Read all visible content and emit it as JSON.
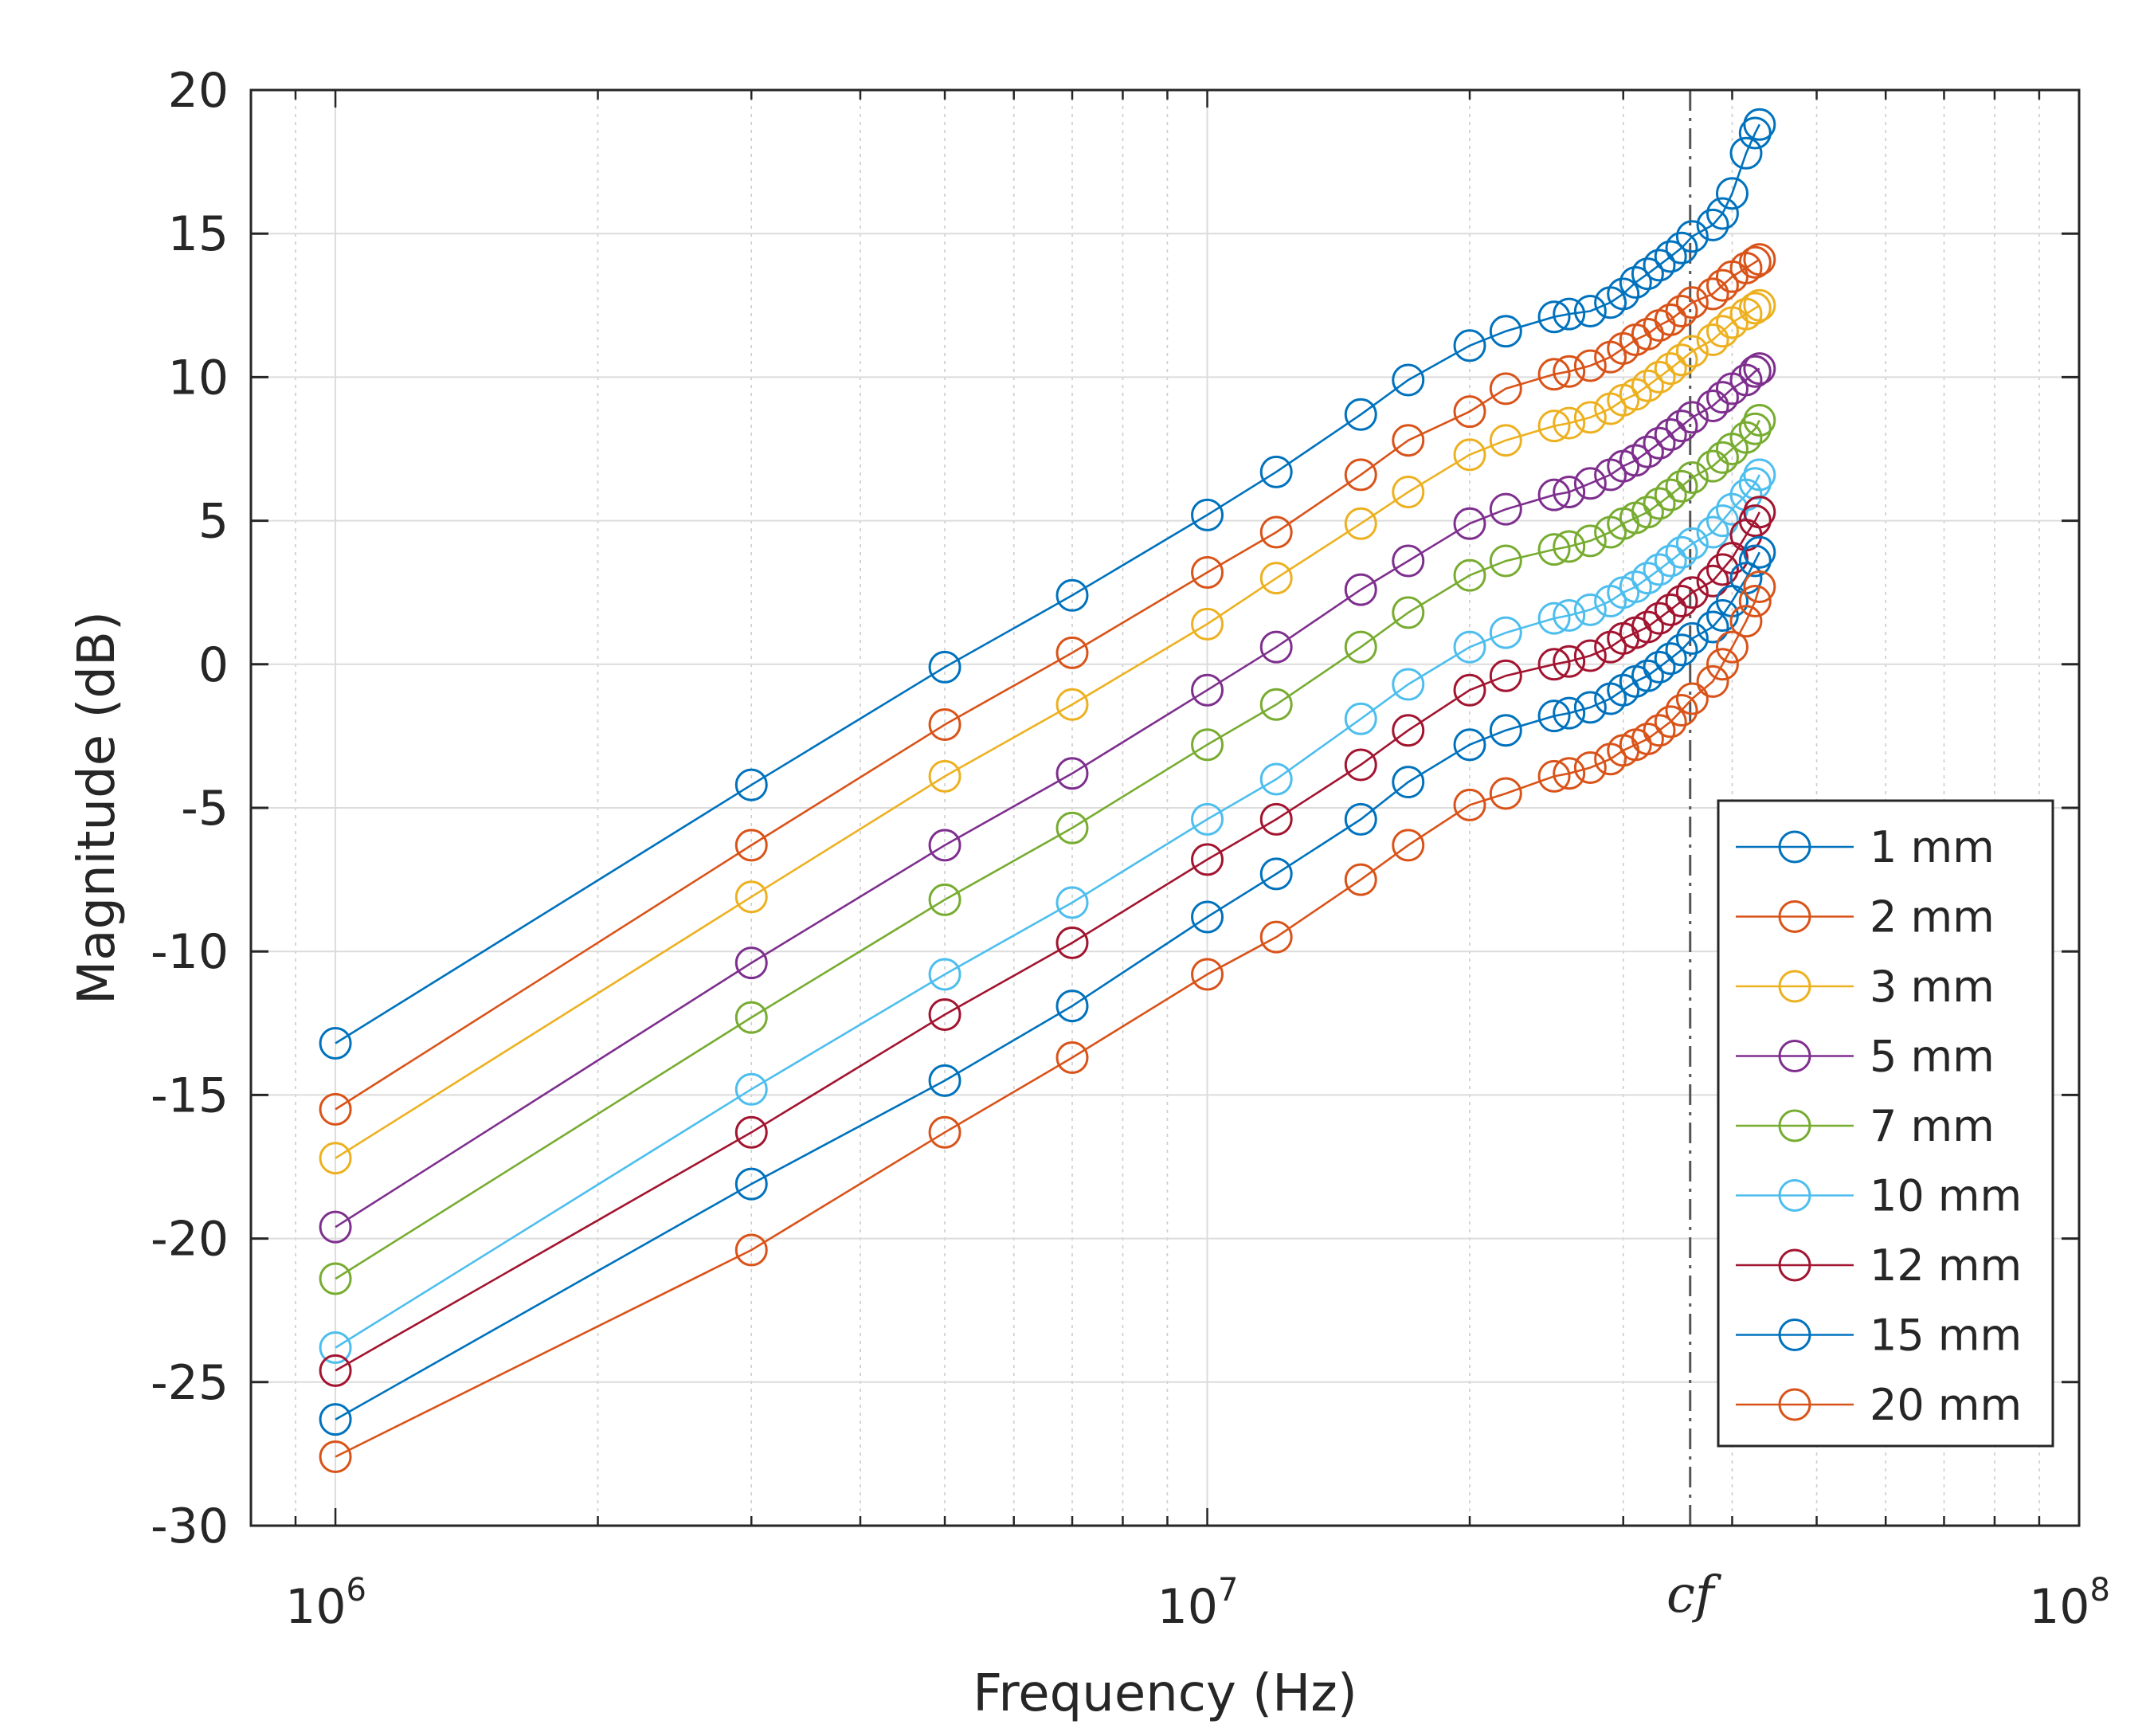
{
  "chart_data": {
    "type": "line",
    "xscale": "log",
    "xlabel": "Frequency (Hz)",
    "ylabel": "Magnitude (dB)",
    "xlim": [
      800000,
      100000000
    ],
    "ylim": [
      -30,
      20
    ],
    "yticks": [
      "-30",
      "-25",
      "-20",
      "-15",
      "-10",
      "-5",
      "0",
      "5",
      "10",
      "15",
      "20"
    ],
    "xticks": [
      {
        "value": 1000000,
        "base": "10",
        "exp": "6"
      },
      {
        "value": 10000000,
        "base": "10",
        "exp": "7"
      },
      {
        "value": 100000000,
        "base": "10",
        "exp": "8"
      }
    ],
    "grid": true,
    "legend_position": "bottom-right",
    "annotation": {
      "label": "cf",
      "x": 35800000,
      "style": "dash-dot vertical line"
    },
    "x": [
      1000000,
      3000000,
      5000000,
      7000000,
      10000000,
      12000000,
      15000000,
      17000000,
      20000000,
      22000000,
      25000000,
      26000000,
      27500000,
      29000000,
      30000000,
      31000000,
      32000000,
      33000000,
      34000000,
      35000000,
      36000000,
      38000000,
      39000000,
      40000000,
      41500000,
      42500000,
      43000000
    ],
    "series": [
      {
        "name": "1 mm",
        "color": "#0072BD",
        "values": [
          -13.2,
          -4.2,
          -0.1,
          2.4,
          5.2,
          6.7,
          8.7,
          9.9,
          11.1,
          11.6,
          12.1,
          12.2,
          12.3,
          12.6,
          12.9,
          13.3,
          13.6,
          13.9,
          14.2,
          14.5,
          14.9,
          15.3,
          15.7,
          16.4,
          17.8,
          18.5,
          18.8
        ]
      },
      {
        "name": "2 mm",
        "color": "#D95319",
        "values": [
          -15.5,
          -6.3,
          -2.1,
          0.4,
          3.2,
          4.6,
          6.6,
          7.8,
          8.8,
          9.6,
          10.1,
          10.2,
          10.4,
          10.7,
          11.0,
          11.3,
          11.5,
          11.8,
          12.0,
          12.3,
          12.6,
          12.9,
          13.2,
          13.5,
          13.8,
          14.0,
          14.1
        ]
      },
      {
        "name": "3 mm",
        "color": "#EDB120",
        "values": [
          -17.2,
          -8.1,
          -3.9,
          -1.4,
          1.4,
          3.0,
          4.9,
          6.0,
          7.3,
          7.8,
          8.3,
          8.4,
          8.6,
          8.9,
          9.2,
          9.4,
          9.7,
          10.0,
          10.3,
          10.6,
          10.9,
          11.3,
          11.6,
          11.9,
          12.2,
          12.4,
          12.5
        ]
      },
      {
        "name": "5 mm",
        "color": "#7E2F8E",
        "values": [
          -19.6,
          -10.4,
          -6.3,
          -3.8,
          -0.9,
          0.6,
          2.6,
          3.6,
          4.9,
          5.4,
          5.9,
          6.0,
          6.3,
          6.6,
          6.9,
          7.1,
          7.4,
          7.7,
          8.0,
          8.3,
          8.6,
          9.0,
          9.3,
          9.6,
          9.9,
          10.2,
          10.3
        ]
      },
      {
        "name": "7 mm",
        "color": "#77AC30",
        "values": [
          -21.4,
          -12.3,
          -8.2,
          -5.7,
          -2.8,
          -1.4,
          0.6,
          1.8,
          3.1,
          3.6,
          4.0,
          4.1,
          4.3,
          4.6,
          4.9,
          5.1,
          5.3,
          5.6,
          5.9,
          6.2,
          6.5,
          6.9,
          7.2,
          7.5,
          7.9,
          8.2,
          8.5
        ]
      },
      {
        "name": "10 mm",
        "color": "#4DBEEE",
        "values": [
          -23.8,
          -14.8,
          -10.8,
          -8.3,
          -5.4,
          -4.0,
          -1.9,
          -0.7,
          0.6,
          1.1,
          1.6,
          1.7,
          1.9,
          2.2,
          2.5,
          2.7,
          3.0,
          3.3,
          3.6,
          3.9,
          4.2,
          4.6,
          5.0,
          5.4,
          5.9,
          6.3,
          6.6
        ]
      },
      {
        "name": "12 mm",
        "color": "#A2142F",
        "values": [
          -24.6,
          -16.3,
          -12.2,
          -9.7,
          -6.8,
          -5.4,
          -3.5,
          -2.3,
          -0.9,
          -0.4,
          0.0,
          0.1,
          0.3,
          0.6,
          0.9,
          1.1,
          1.3,
          1.6,
          1.9,
          2.2,
          2.5,
          2.9,
          3.3,
          3.7,
          4.5,
          5.0,
          5.3
        ]
      },
      {
        "name": "15 mm",
        "color": "#0072BD",
        "values": [
          -26.3,
          -18.1,
          -14.5,
          -11.9,
          -8.8,
          -7.3,
          -5.4,
          -4.1,
          -2.8,
          -2.3,
          -1.8,
          -1.7,
          -1.5,
          -1.2,
          -0.9,
          -0.6,
          -0.4,
          -0.1,
          0.2,
          0.5,
          0.9,
          1.3,
          1.7,
          2.2,
          3.0,
          3.6,
          3.9
        ]
      },
      {
        "name": "20 mm",
        "color": "#D95319",
        "values": [
          -27.6,
          -20.4,
          -16.3,
          -13.7,
          -10.8,
          -9.5,
          -7.5,
          -6.3,
          -4.9,
          -4.5,
          -3.9,
          -3.8,
          -3.6,
          -3.3,
          -3.0,
          -2.8,
          -2.6,
          -2.3,
          -2.0,
          -1.6,
          -1.2,
          -0.6,
          0.0,
          0.6,
          1.5,
          2.2,
          2.7
        ]
      }
    ]
  }
}
